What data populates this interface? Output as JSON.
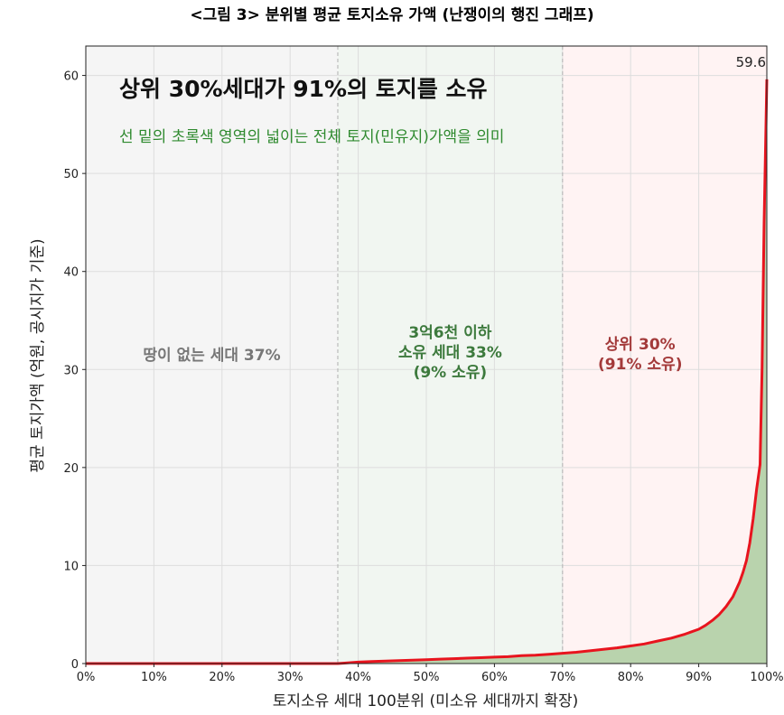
{
  "chart_data": {
    "type": "area",
    "title": "<그림 3> 분위별 평균 토지소유 가액 (난쟁이의 행진 그래프)",
    "xlabel": "토지소유 세대 100분위 (미소유 세대까지 확장)",
    "ylabel": "평균 토지가액 (억원, 공시지가 기준)",
    "xlim": [
      0,
      100
    ],
    "ylim": [
      0,
      63
    ],
    "x_ticks": [
      "0%",
      "10%",
      "20%",
      "30%",
      "40%",
      "50%",
      "60%",
      "70%",
      "80%",
      "90%",
      "100%"
    ],
    "y_ticks": [
      0,
      10,
      20,
      30,
      40,
      50,
      60
    ],
    "grid": true,
    "headline": "상위 30%세대가 91%의 토지를 소유",
    "subheadline": "선 밑의 초록색 영역의 넓이는 전체 토지(민유지)가액을 의미",
    "regions": [
      {
        "from": 0,
        "to": 37,
        "color": "#f5f5f5",
        "label": [
          "땅이 없는 세대 37%"
        ]
      },
      {
        "from": 37,
        "to": 70,
        "color": "#f1f6f1",
        "label": [
          "3억6천 이하",
          "소유 세대 33%",
          "(9% 소유)"
        ]
      },
      {
        "from": 70,
        "to": 100,
        "color": "#fff3f3",
        "label": [
          "상위 30%",
          "(91% 소유)"
        ]
      }
    ],
    "dividers": [
      37,
      70
    ],
    "peak_label": "59.6",
    "series": [
      {
        "line_color": "#e8141e",
        "fill_color": "#b9d3ad",
        "x": [
          0,
          37,
          38,
          40,
          42,
          44,
          46,
          48,
          50,
          52,
          54,
          56,
          58,
          60,
          62,
          64,
          66,
          68,
          70,
          72,
          74,
          76,
          78,
          80,
          82,
          84,
          86,
          88,
          90,
          91,
          92,
          93,
          94,
          95,
          96,
          96.5,
          97,
          97.5,
          98,
          98.5,
          99,
          99.3,
          99.6,
          100
        ],
        "y": [
          0,
          0,
          0.05,
          0.15,
          0.2,
          0.25,
          0.3,
          0.35,
          0.4,
          0.45,
          0.5,
          0.55,
          0.6,
          0.65,
          0.7,
          0.8,
          0.85,
          0.95,
          1.05,
          1.15,
          1.3,
          1.45,
          1.6,
          1.8,
          2.0,
          2.3,
          2.6,
          3.0,
          3.5,
          3.9,
          4.4,
          5.0,
          5.8,
          6.8,
          8.3,
          9.3,
          10.5,
          12.3,
          14.8,
          17.8,
          20.3,
          30,
          45,
          59.6
        ]
      }
    ]
  }
}
